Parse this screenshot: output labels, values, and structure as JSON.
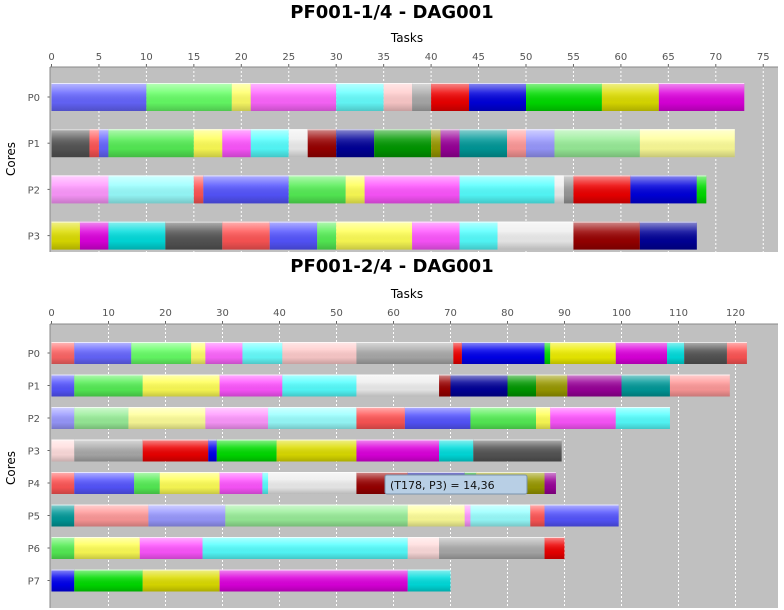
{
  "chart_data": [
    {
      "type": "gantt",
      "title": "PF001-1/4 - DAG001",
      "xlabel": "Tasks",
      "ylabel": "Cores",
      "xlim": [
        0,
        76
      ],
      "xticks": [
        0,
        5,
        10,
        15,
        20,
        25,
        30,
        35,
        40,
        45,
        50,
        55,
        60,
        65,
        70,
        75
      ],
      "categories": [
        "P0",
        "P1",
        "P2",
        "P3"
      ],
      "grid": true,
      "series": [
        {
          "core": "P0",
          "tasks": [
            {
              "start": 0,
              "end": 10,
              "color": "#6666ff"
            },
            {
              "start": 10,
              "end": 19,
              "color": "#66ff66"
            },
            {
              "start": 19,
              "end": 21,
              "color": "#ffff66"
            },
            {
              "start": 21,
              "end": 30,
              "color": "#ff66ff"
            },
            {
              "start": 30,
              "end": 35,
              "color": "#66ffff"
            },
            {
              "start": 35,
              "end": 38,
              "color": "#ffcccc"
            },
            {
              "start": 38,
              "end": 40,
              "color": "#aaaaaa"
            },
            {
              "start": 40,
              "end": 44,
              "color": "#ee0000"
            },
            {
              "start": 44,
              "end": 50,
              "color": "#0000dd"
            },
            {
              "start": 50,
              "end": 58,
              "color": "#00dd00"
            },
            {
              "start": 58,
              "end": 64,
              "color": "#dddd00"
            },
            {
              "start": 64,
              "end": 73,
              "color": "#dd00dd"
            }
          ]
        },
        {
          "core": "P1",
          "tasks": [
            {
              "start": 0,
              "end": 4,
              "color": "#555555"
            },
            {
              "start": 4,
              "end": 5,
              "color": "#ff5555"
            },
            {
              "start": 5,
              "end": 6,
              "color": "#6666ff"
            },
            {
              "start": 6,
              "end": 15,
              "color": "#55ee55"
            },
            {
              "start": 15,
              "end": 18,
              "color": "#ffff55"
            },
            {
              "start": 18,
              "end": 21,
              "color": "#ff55ff"
            },
            {
              "start": 21,
              "end": 25,
              "color": "#55ffff"
            },
            {
              "start": 25,
              "end": 27,
              "color": "#eeeeee"
            },
            {
              "start": 27,
              "end": 30,
              "color": "#990000"
            },
            {
              "start": 30,
              "end": 34,
              "color": "#000099"
            },
            {
              "start": 34,
              "end": 40,
              "color": "#009900"
            },
            {
              "start": 40,
              "end": 41,
              "color": "#999900"
            },
            {
              "start": 41,
              "end": 43,
              "color": "#990099"
            },
            {
              "start": 43,
              "end": 48,
              "color": "#009999"
            },
            {
              "start": 48,
              "end": 50,
              "color": "#ff9999"
            },
            {
              "start": 50,
              "end": 53,
              "color": "#9999ff"
            },
            {
              "start": 53,
              "end": 62,
              "color": "#99ee99"
            },
            {
              "start": 62,
              "end": 72,
              "color": "#ffff99"
            }
          ]
        },
        {
          "core": "P2",
          "tasks": [
            {
              "start": 0,
              "end": 6,
              "color": "#ff99ff"
            },
            {
              "start": 6,
              "end": 15,
              "color": "#99ffff"
            },
            {
              "start": 15,
              "end": 16,
              "color": "#ff5555"
            },
            {
              "start": 16,
              "end": 25,
              "color": "#5555ff"
            },
            {
              "start": 25,
              "end": 31,
              "color": "#55ee55"
            },
            {
              "start": 31,
              "end": 33,
              "color": "#ffff55"
            },
            {
              "start": 33,
              "end": 43,
              "color": "#ff55ff"
            },
            {
              "start": 43,
              "end": 53,
              "color": "#55ffff"
            },
            {
              "start": 53,
              "end": 54,
              "color": "#eeeeee"
            },
            {
              "start": 54,
              "end": 55,
              "color": "#999999"
            },
            {
              "start": 55,
              "end": 61,
              "color": "#ee0000"
            },
            {
              "start": 61,
              "end": 68,
              "color": "#0000dd"
            },
            {
              "start": 68,
              "end": 69,
              "color": "#00dd00"
            }
          ]
        },
        {
          "core": "P3",
          "tasks": [
            {
              "start": 0,
              "end": 3,
              "color": "#dddd00"
            },
            {
              "start": 3,
              "end": 6,
              "color": "#dd00dd"
            },
            {
              "start": 6,
              "end": 12,
              "color": "#00dddd"
            },
            {
              "start": 12,
              "end": 18,
              "color": "#555555"
            },
            {
              "start": 18,
              "end": 23,
              "color": "#ff5555"
            },
            {
              "start": 23,
              "end": 28,
              "color": "#5555ff"
            },
            {
              "start": 28,
              "end": 30,
              "color": "#55ee55"
            },
            {
              "start": 30,
              "end": 38,
              "color": "#ffff55"
            },
            {
              "start": 38,
              "end": 43,
              "color": "#ff55ff"
            },
            {
              "start": 43,
              "end": 47,
              "color": "#55ffff"
            },
            {
              "start": 47,
              "end": 55,
              "color": "#eeeeee"
            },
            {
              "start": 55,
              "end": 62,
              "color": "#990000"
            },
            {
              "start": 62,
              "end": 68,
              "color": "#000099"
            }
          ]
        }
      ]
    },
    {
      "type": "gantt",
      "title": "PF001-2/4 - DAG001",
      "xlabel": "Tasks",
      "ylabel": "Cores",
      "xlim": [
        0,
        128
      ],
      "xticks": [
        0,
        10,
        20,
        30,
        40,
        50,
        60,
        70,
        80,
        90,
        100,
        110,
        120
      ],
      "categories": [
        "P0",
        "P1",
        "P2",
        "P3",
        "P4",
        "P5",
        "P6",
        "P7"
      ],
      "grid": true,
      "tooltip": "(T178, P3) = 14,36",
      "series": [
        {
          "core": "P0",
          "tasks": [
            {
              "start": 0,
              "end": 4,
              "color": "#ff6666"
            },
            {
              "start": 4,
              "end": 14,
              "color": "#6666ff"
            },
            {
              "start": 14,
              "end": 24.5,
              "color": "#66ff66"
            },
            {
              "start": 24.5,
              "end": 27,
              "color": "#ffff66"
            },
            {
              "start": 27,
              "end": 33.5,
              "color": "#ff66ff"
            },
            {
              "start": 33.5,
              "end": 40.5,
              "color": "#66ffff"
            },
            {
              "start": 40.5,
              "end": 53.5,
              "color": "#ffcccc"
            },
            {
              "start": 53.5,
              "end": 70.5,
              "color": "#aaaaaa"
            },
            {
              "start": 70.5,
              "end": 72,
              "color": "#ee0000"
            },
            {
              "start": 72,
              "end": 86.5,
              "color": "#0000ee"
            },
            {
              "start": 86.5,
              "end": 87.5,
              "color": "#00dd00"
            },
            {
              "start": 87.5,
              "end": 99,
              "color": "#eeee00"
            },
            {
              "start": 99,
              "end": 108,
              "color": "#dd00dd"
            },
            {
              "start": 108,
              "end": 111,
              "color": "#00dddd"
            },
            {
              "start": 111,
              "end": 118.5,
              "color": "#555555"
            },
            {
              "start": 118.5,
              "end": 122,
              "color": "#ff5555"
            }
          ]
        },
        {
          "core": "P1",
          "tasks": [
            {
              "start": 0,
              "end": 4,
              "color": "#5555ff"
            },
            {
              "start": 4,
              "end": 16,
              "color": "#55ee55"
            },
            {
              "start": 16,
              "end": 29.5,
              "color": "#ffff55"
            },
            {
              "start": 29.5,
              "end": 40.5,
              "color": "#ff55ff"
            },
            {
              "start": 40.5,
              "end": 53.5,
              "color": "#55ffff"
            },
            {
              "start": 53.5,
              "end": 68,
              "color": "#eeeeee"
            },
            {
              "start": 68,
              "end": 70,
              "color": "#990000"
            },
            {
              "start": 70,
              "end": 80,
              "color": "#000099"
            },
            {
              "start": 80,
              "end": 85,
              "color": "#009900"
            },
            {
              "start": 85,
              "end": 90.5,
              "color": "#999900"
            },
            {
              "start": 90.5,
              "end": 100,
              "color": "#990099"
            },
            {
              "start": 100,
              "end": 108.5,
              "color": "#009999"
            },
            {
              "start": 108.5,
              "end": 119,
              "color": "#ff9999"
            }
          ]
        },
        {
          "core": "P2",
          "tasks": [
            {
              "start": 0,
              "end": 4,
              "color": "#9999ff"
            },
            {
              "start": 4,
              "end": 13.5,
              "color": "#99ee99"
            },
            {
              "start": 13.5,
              "end": 27,
              "color": "#ffff99"
            },
            {
              "start": 27,
              "end": 38,
              "color": "#ff99ff"
            },
            {
              "start": 38,
              "end": 53.5,
              "color": "#99ffff"
            },
            {
              "start": 53.5,
              "end": 62,
              "color": "#ff5555"
            },
            {
              "start": 62,
              "end": 73.5,
              "color": "#5555ff"
            },
            {
              "start": 73.5,
              "end": 85,
              "color": "#55ee55"
            },
            {
              "start": 85,
              "end": 87.5,
              "color": "#ffff55"
            },
            {
              "start": 87.5,
              "end": 99,
              "color": "#ff55ff"
            },
            {
              "start": 99,
              "end": 108.5,
              "color": "#55ffff"
            }
          ]
        },
        {
          "core": "P3",
          "tasks": [
            {
              "start": 0,
              "end": 4,
              "color": "#ffdddd"
            },
            {
              "start": 4,
              "end": 16,
              "color": "#aaaaaa"
            },
            {
              "start": 16,
              "end": 27.5,
              "color": "#ee0000"
            },
            {
              "start": 27.5,
              "end": 29,
              "color": "#0000ee"
            },
            {
              "start": 29,
              "end": 39.5,
              "color": "#00dd00"
            },
            {
              "start": 39.5,
              "end": 53.5,
              "color": "#dddd00"
            },
            {
              "start": 53.5,
              "end": 68,
              "color": "#dd00dd"
            },
            {
              "start": 68,
              "end": 74,
              "color": "#00dddd"
            },
            {
              "start": 74,
              "end": 89.5,
              "color": "#555555"
            }
          ]
        },
        {
          "core": "P4",
          "tasks": [
            {
              "start": 0,
              "end": 4,
              "color": "#ff5555"
            },
            {
              "start": 4,
              "end": 14.5,
              "color": "#5555ff"
            },
            {
              "start": 14.5,
              "end": 19,
              "color": "#55ee55"
            },
            {
              "start": 19,
              "end": 29.5,
              "color": "#ffff55"
            },
            {
              "start": 29.5,
              "end": 37,
              "color": "#ff55ff"
            },
            {
              "start": 37,
              "end": 38,
              "color": "#55ffff"
            },
            {
              "start": 38,
              "end": 53.5,
              "color": "#eeeeee"
            },
            {
              "start": 53.5,
              "end": 62.5,
              "color": "#990000"
            },
            {
              "start": 62.5,
              "end": 72.5,
              "color": "#000099"
            },
            {
              "start": 72.5,
              "end": 74.5,
              "color": "#009900"
            },
            {
              "start": 74.5,
              "end": 86.5,
              "color": "#999900"
            },
            {
              "start": 86.5,
              "end": 88.5,
              "color": "#990099"
            }
          ]
        },
        {
          "core": "P5",
          "tasks": [
            {
              "start": 0,
              "end": 4,
              "color": "#009999"
            },
            {
              "start": 4,
              "end": 17,
              "color": "#ff9999"
            },
            {
              "start": 17,
              "end": 30.5,
              "color": "#9999ff"
            },
            {
              "start": 30.5,
              "end": 62.5,
              "color": "#99ee99"
            },
            {
              "start": 62.5,
              "end": 72.5,
              "color": "#ffff99"
            },
            {
              "start": 72.5,
              "end": 73.5,
              "color": "#ff99ff"
            },
            {
              "start": 73.5,
              "end": 84,
              "color": "#99ffff"
            },
            {
              "start": 84,
              "end": 86.5,
              "color": "#ff5555"
            },
            {
              "start": 86.5,
              "end": 99.5,
              "color": "#5555ff"
            }
          ]
        },
        {
          "core": "P6",
          "tasks": [
            {
              "start": 0,
              "end": 4,
              "color": "#55ee55"
            },
            {
              "start": 4,
              "end": 15.5,
              "color": "#ffff55"
            },
            {
              "start": 15.5,
              "end": 26.5,
              "color": "#ff55ff"
            },
            {
              "start": 26.5,
              "end": 62.5,
              "color": "#55ffff"
            },
            {
              "start": 62.5,
              "end": 68,
              "color": "#ffdddd"
            },
            {
              "start": 68,
              "end": 86.5,
              "color": "#aaaaaa"
            },
            {
              "start": 86.5,
              "end": 90,
              "color": "#ee0000"
            }
          ]
        },
        {
          "core": "P7",
          "tasks": [
            {
              "start": 0,
              "end": 4,
              "color": "#0000ee"
            },
            {
              "start": 4,
              "end": 16,
              "color": "#00dd00"
            },
            {
              "start": 16,
              "end": 29.5,
              "color": "#dddd00"
            },
            {
              "start": 29.5,
              "end": 62.5,
              "color": "#dd00dd"
            },
            {
              "start": 62.5,
              "end": 70,
              "color": "#00dddd"
            }
          ]
        }
      ]
    }
  ],
  "colors": {
    "plot_background": "#c0c0c0",
    "grid": "#ffffff",
    "tooltip_background": "#b8cfe5"
  }
}
